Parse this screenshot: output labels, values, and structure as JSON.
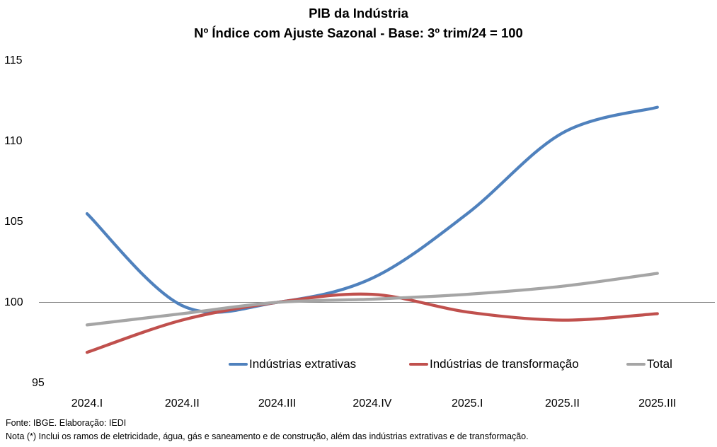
{
  "title": {
    "line1": "PIB da Indústria",
    "line2": "Nº Índice com Ajuste Sazonal - Base: 3º trim/24 = 100"
  },
  "footer": {
    "source": "Fonte: IBGE. Elaboração: IEDI",
    "note": "Nota (*) Inclui os ramos de eletricidade, água, gás e saneamento e de construção, além das indústrias extrativas e de transformação."
  },
  "chart_data": {
    "type": "line",
    "smooth": true,
    "title": "PIB da Indústria",
    "subtitle": "Nº Índice com Ajuste Sazonal - Base: 3º trim/24 = 100",
    "categories": [
      "2024.I",
      "2024.II",
      "2024.III",
      "2024.IV",
      "2025.I",
      "2025.II",
      "2025.III"
    ],
    "series": [
      {
        "name": "Indústrias extrativas",
        "color": "#4F81BD",
        "values": [
          105.5,
          99.8,
          100.0,
          101.5,
          105.5,
          110.5,
          112.1
        ]
      },
      {
        "name": "Indústrias de transformação",
        "color": "#C0504D",
        "values": [
          96.9,
          98.9,
          100.0,
          100.5,
          99.4,
          98.9,
          99.3
        ]
      },
      {
        "name": "Total",
        "color": "#A5A5A5",
        "values": [
          98.6,
          99.3,
          100.0,
          100.2,
          100.5,
          101.0,
          101.8
        ]
      }
    ],
    "y_ticks": [
      115,
      110,
      105,
      100,
      95
    ],
    "ylim": [
      95,
      115
    ],
    "baseline_value": 100,
    "baseline_color": "#808080",
    "grid": "baseline-only",
    "legend_position": "bottom"
  }
}
